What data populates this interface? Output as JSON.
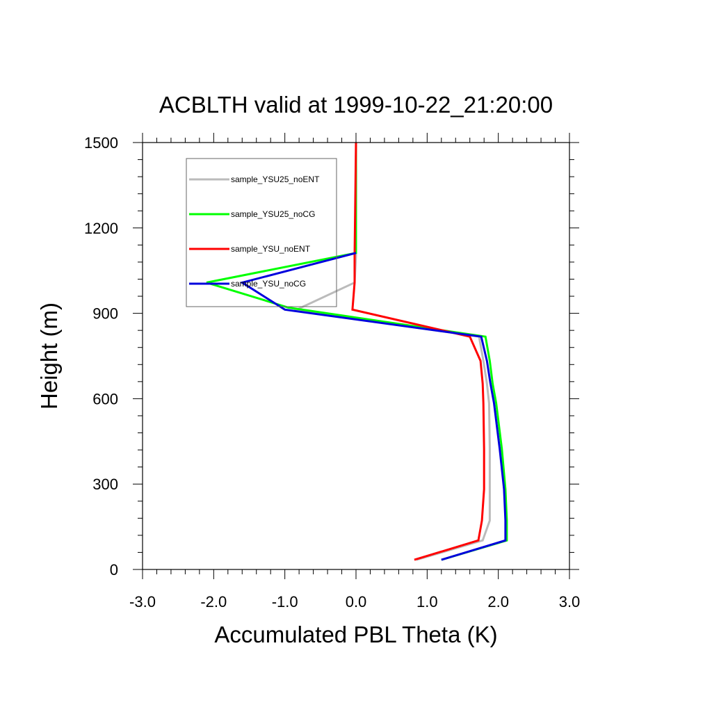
{
  "chart_data": {
    "type": "line",
    "title": "ACBLTH valid at 1999-10-22_21:20:00",
    "xlabel": "Accumulated PBL Theta (K)",
    "ylabel": "Height (m)",
    "xlim": [
      -3.0,
      3.0
    ],
    "ylim": [
      0,
      1500
    ],
    "xticks": [
      "-3.0",
      "-2.0",
      "-1.0",
      "0.0",
      "1.0",
      "2.0",
      "3.0"
    ],
    "yticks": [
      "0",
      "300",
      "600",
      "900",
      "1200",
      "1500"
    ],
    "grid": false,
    "legend_position": "top-left",
    "series": [
      {
        "name": "sample_YSU25_noENT",
        "color": "#bbbbbb",
        "x": [
          0.85,
          1.78,
          1.88,
          1.88,
          1.88,
          1.87,
          1.84,
          1.79,
          1.73,
          -0.85,
          -0.02,
          0.0,
          0.0
        ],
        "y": [
          34,
          102,
          172,
          282,
          423,
          584,
          653,
          733,
          818,
          911,
          1008,
          1105,
          1500
        ]
      },
      {
        "name": "sample_YSU25_noCG",
        "color": "#00ff00",
        "x": [
          1.2,
          2.12,
          2.12,
          2.1,
          2.05,
          1.97,
          1.92,
          1.88,
          1.82,
          -0.95,
          -2.1,
          0.0,
          0.0
        ],
        "y": [
          34,
          102,
          172,
          282,
          423,
          584,
          653,
          733,
          818,
          920,
          1008,
          1112,
          1500
        ]
      },
      {
        "name": "sample_YSU_noENT",
        "color": "#ff0000",
        "x": [
          0.82,
          1.72,
          1.77,
          1.8,
          1.8,
          1.79,
          1.78,
          1.75,
          1.6,
          -0.05,
          -0.02,
          -0.02,
          0.0
        ],
        "y": [
          34,
          102,
          172,
          282,
          423,
          584,
          653,
          733,
          818,
          913,
          1008,
          1105,
          1500
        ]
      },
      {
        "name": "sample_YSU_noCG",
        "color": "#0000dd",
        "x": [
          1.2,
          2.1,
          2.1,
          2.08,
          2.02,
          1.94,
          1.89,
          1.84,
          1.76,
          -1.0,
          -1.6,
          0.0
        ],
        "y": [
          34,
          102,
          172,
          282,
          423,
          584,
          653,
          733,
          818,
          913,
          1008,
          1112
        ]
      }
    ]
  }
}
